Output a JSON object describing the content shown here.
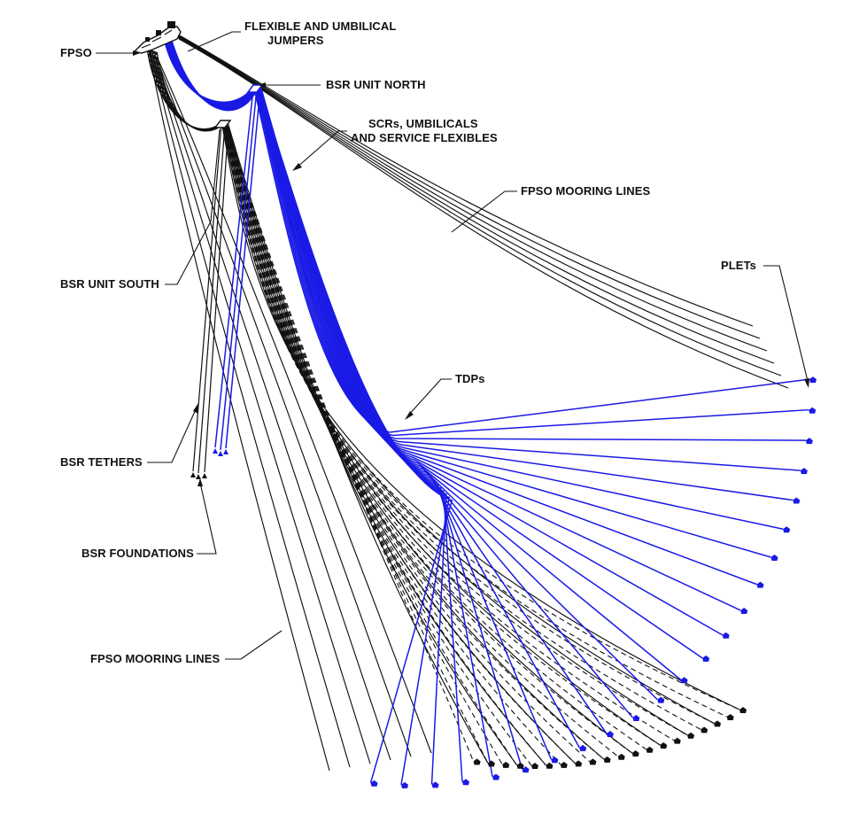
{
  "labels": {
    "fpso": "FPSO",
    "jumpers_line1": "FLEXIBLE AND UMBILICAL",
    "jumpers_line2": "JUMPERS",
    "bsr_north": "BSR UNIT NORTH",
    "scrs_line1": "SCRs, UMBILICALS",
    "scrs_line2": "AND SERVICE FLEXIBLES",
    "mooring_upper": "FPSO MOORING LINES",
    "plets": "PLETs",
    "bsr_south": "BSR UNIT SOUTH",
    "tdps": "TDPs",
    "bsr_tethers": "BSR TETHERS",
    "bsr_foundations": "BSR FOUNDATIONS",
    "mooring_lower": "FPSO MOORING LINES"
  },
  "colors": {
    "line_black": "#111111",
    "line_blue": "#1a1ae6",
    "background": "#ffffff"
  }
}
